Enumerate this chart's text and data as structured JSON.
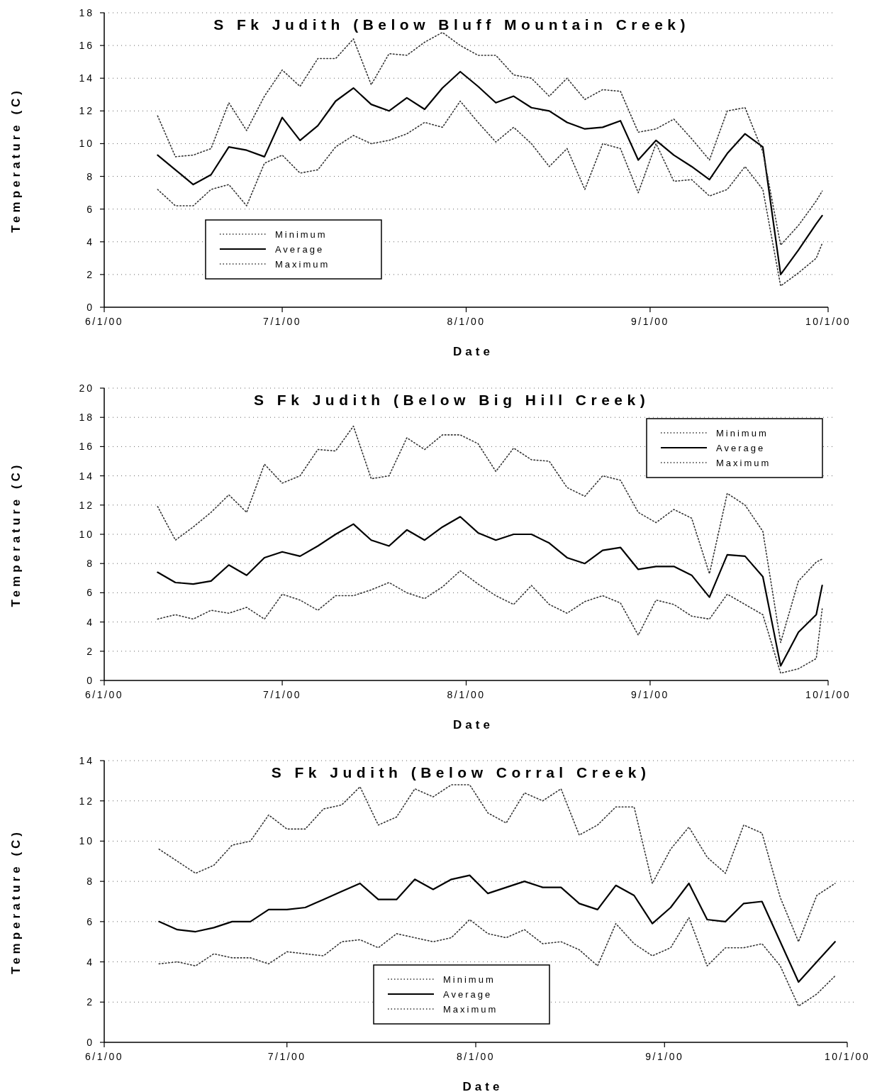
{
  "chart_data": [
    {
      "type": "line",
      "title": "S Fk Judith (Below Bluff Mountain Creek)",
      "xlabel": "Date",
      "ylabel": "Temperature (C)",
      "x": [
        "2000-06-10",
        "2000-06-13",
        "2000-06-16",
        "2000-06-19",
        "2000-06-22",
        "2000-06-25",
        "2000-06-28",
        "2000-07-01",
        "2000-07-04",
        "2000-07-07",
        "2000-07-10",
        "2000-07-13",
        "2000-07-16",
        "2000-07-19",
        "2000-07-22",
        "2000-07-25",
        "2000-07-28",
        "2000-07-31",
        "2000-08-03",
        "2000-08-06",
        "2000-08-09",
        "2000-08-12",
        "2000-08-15",
        "2000-08-18",
        "2000-08-21",
        "2000-08-24",
        "2000-08-27",
        "2000-08-30",
        "2000-09-02",
        "2000-09-05",
        "2000-09-08",
        "2000-09-11",
        "2000-09-14",
        "2000-09-17",
        "2000-09-20",
        "2000-09-23",
        "2000-09-26",
        "2000-09-29",
        "2000-09-30"
      ],
      "series": [
        {
          "name": "Minimum",
          "color": "#333333",
          "line_style": "dotted",
          "values": [
            7.2,
            6.2,
            6.2,
            7.2,
            7.5,
            6.2,
            8.8,
            9.3,
            8.2,
            8.4,
            9.8,
            10.5,
            10.0,
            10.2,
            10.6,
            11.3,
            11.0,
            12.6,
            11.3,
            10.1,
            11.0,
            10.0,
            8.6,
            9.7,
            7.2,
            10.0,
            9.7,
            7.0,
            10.0,
            7.7,
            7.8,
            6.8,
            7.2,
            8.6,
            7.2,
            1.3,
            2.1,
            3.0,
            3.9
          ]
        },
        {
          "name": "Average",
          "color": "#000000",
          "line_style": "solid",
          "values": [
            9.3,
            8.4,
            7.5,
            8.1,
            9.8,
            9.6,
            9.2,
            11.6,
            10.2,
            11.1,
            12.6,
            13.4,
            12.4,
            12.0,
            12.8,
            12.1,
            13.4,
            14.4,
            13.5,
            12.5,
            12.9,
            12.2,
            12.0,
            11.3,
            10.9,
            11.0,
            11.4,
            9.0,
            10.2,
            9.3,
            8.6,
            7.8,
            9.4,
            10.6,
            9.8,
            2.0,
            3.5,
            5.1,
            5.6
          ]
        },
        {
          "name": "Maximum",
          "color": "#333333",
          "line_style": "dotted",
          "values": [
            11.7,
            9.2,
            9.3,
            9.7,
            12.5,
            10.8,
            12.9,
            14.5,
            13.5,
            15.2,
            15.2,
            16.4,
            13.6,
            15.5,
            15.4,
            16.2,
            16.8,
            16.0,
            15.4,
            15.4,
            14.2,
            14.0,
            12.9,
            14.0,
            12.7,
            13.3,
            13.2,
            10.7,
            10.9,
            11.5,
            10.3,
            9.0,
            12.0,
            12.2,
            9.5,
            3.8,
            5.0,
            6.5,
            7.1
          ]
        }
      ],
      "xlim": [
        "2000-06-01",
        "2000-10-01"
      ],
      "xticks": [
        {
          "value": "2000-06-01",
          "label": "6/1/00"
        },
        {
          "value": "2000-07-01",
          "label": "7/1/00"
        },
        {
          "value": "2000-08-01",
          "label": "8/1/00"
        },
        {
          "value": "2000-09-01",
          "label": "9/1/00"
        },
        {
          "value": "2000-10-01",
          "label": "10/1/00"
        }
      ],
      "ylim": [
        0,
        18
      ],
      "yticks": [
        0,
        2,
        4,
        6,
        8,
        10,
        12,
        14,
        16,
        18
      ],
      "grid": "y",
      "legend": "bottom left"
    },
    {
      "type": "line",
      "title": "S Fk Judith (Below Big Hill Creek)",
      "xlabel": "Date",
      "ylabel": "Temperature (C)",
      "x": [
        "2000-06-10",
        "2000-06-13",
        "2000-06-16",
        "2000-06-19",
        "2000-06-22",
        "2000-06-25",
        "2000-06-28",
        "2000-07-01",
        "2000-07-04",
        "2000-07-07",
        "2000-07-10",
        "2000-07-13",
        "2000-07-16",
        "2000-07-19",
        "2000-07-22",
        "2000-07-25",
        "2000-07-28",
        "2000-07-31",
        "2000-08-03",
        "2000-08-06",
        "2000-08-09",
        "2000-08-12",
        "2000-08-15",
        "2000-08-18",
        "2000-08-21",
        "2000-08-24",
        "2000-08-27",
        "2000-08-30",
        "2000-09-02",
        "2000-09-05",
        "2000-09-08",
        "2000-09-11",
        "2000-09-14",
        "2000-09-17",
        "2000-09-20",
        "2000-09-23",
        "2000-09-26",
        "2000-09-29",
        "2000-09-30"
      ],
      "series": [
        {
          "name": "Minimum",
          "color": "#333333",
          "line_style": "dotted",
          "values": [
            4.2,
            4.5,
            4.2,
            4.8,
            4.6,
            5.0,
            4.2,
            5.9,
            5.5,
            4.8,
            5.8,
            5.8,
            6.2,
            6.7,
            6.0,
            5.6,
            6.4,
            7.5,
            6.6,
            5.8,
            5.2,
            6.5,
            5.2,
            4.6,
            5.4,
            5.8,
            5.3,
            3.1,
            5.5,
            5.2,
            4.4,
            4.2,
            5.9,
            5.2,
            4.5,
            0.5,
            0.8,
            1.5,
            4.9
          ]
        },
        {
          "name": "Average",
          "color": "#000000",
          "line_style": "solid",
          "values": [
            7.4,
            6.7,
            6.6,
            6.8,
            7.9,
            7.2,
            8.4,
            8.8,
            8.5,
            9.2,
            10.0,
            10.7,
            9.6,
            9.2,
            10.3,
            9.6,
            10.5,
            11.2,
            10.1,
            9.6,
            10.0,
            10.0,
            9.4,
            8.4,
            8.0,
            8.9,
            9.1,
            7.6,
            7.8,
            7.8,
            7.2,
            5.7,
            8.6,
            8.5,
            7.1,
            1.0,
            3.3,
            4.5,
            6.5
          ]
        },
        {
          "name": "Maximum",
          "color": "#333333",
          "line_style": "dotted",
          "values": [
            11.9,
            9.6,
            10.5,
            11.5,
            12.7,
            11.5,
            14.8,
            13.5,
            14.0,
            15.8,
            15.7,
            17.4,
            13.8,
            14.0,
            16.6,
            15.8,
            16.8,
            16.8,
            16.2,
            14.3,
            15.9,
            15.1,
            15.0,
            13.2,
            12.6,
            14.0,
            13.7,
            11.5,
            10.8,
            11.7,
            11.1,
            7.3,
            12.8,
            12.0,
            10.2,
            2.6,
            6.8,
            8.1,
            8.3
          ]
        }
      ],
      "xlim": [
        "2000-06-01",
        "2000-10-01"
      ],
      "xticks": [
        {
          "value": "2000-06-01",
          "label": "6/1/00"
        },
        {
          "value": "2000-07-01",
          "label": "7/1/00"
        },
        {
          "value": "2000-08-01",
          "label": "8/1/00"
        },
        {
          "value": "2000-09-01",
          "label": "9/1/00"
        },
        {
          "value": "2000-10-01",
          "label": "10/1/00"
        }
      ],
      "ylim": [
        0,
        20
      ],
      "yticks": [
        0,
        2,
        4,
        6,
        8,
        10,
        12,
        14,
        16,
        18,
        20
      ],
      "grid": "y",
      "legend": "top right"
    },
    {
      "type": "line",
      "title": "S Fk Judith (Below Corral Creek)",
      "xlabel": "Date",
      "ylabel": "Temperature (C)",
      "x": [
        "2000-06-10",
        "2000-06-13",
        "2000-06-16",
        "2000-06-19",
        "2000-06-22",
        "2000-06-25",
        "2000-06-28",
        "2000-07-01",
        "2000-07-04",
        "2000-07-07",
        "2000-07-10",
        "2000-07-13",
        "2000-07-16",
        "2000-07-19",
        "2000-07-22",
        "2000-07-25",
        "2000-07-28",
        "2000-07-31",
        "2000-08-03",
        "2000-08-06",
        "2000-08-09",
        "2000-08-12",
        "2000-08-15",
        "2000-08-18",
        "2000-08-21",
        "2000-08-24",
        "2000-08-27",
        "2000-08-30",
        "2000-09-02",
        "2000-09-05",
        "2000-09-08",
        "2000-09-11",
        "2000-09-14",
        "2000-09-17",
        "2000-09-20",
        "2000-09-23",
        "2000-09-26",
        "2000-09-29"
      ],
      "series": [
        {
          "name": "Minimum",
          "color": "#333333",
          "line_style": "dotted",
          "values": [
            3.9,
            4.0,
            3.8,
            4.4,
            4.2,
            4.2,
            3.9,
            4.5,
            4.4,
            4.3,
            5.0,
            5.1,
            4.7,
            5.4,
            5.2,
            5.0,
            5.2,
            6.1,
            5.4,
            5.2,
            5.6,
            4.9,
            5.0,
            4.6,
            3.8,
            5.9,
            4.9,
            4.3,
            4.7,
            6.2,
            3.8,
            4.7,
            4.7,
            4.9,
            3.8,
            1.8,
            2.4,
            3.3
          ]
        },
        {
          "name": "Average",
          "color": "#000000",
          "line_style": "solid",
          "values": [
            6.0,
            5.6,
            5.5,
            5.7,
            6.0,
            6.0,
            6.6,
            6.6,
            6.7,
            7.1,
            7.5,
            7.9,
            7.1,
            7.1,
            8.1,
            7.6,
            8.1,
            8.3,
            7.4,
            7.7,
            8.0,
            7.7,
            7.7,
            6.9,
            6.6,
            7.8,
            7.3,
            5.9,
            6.7,
            7.9,
            6.1,
            6.0,
            6.9,
            7.0,
            5.0,
            3.0,
            4.0,
            5.0
          ]
        },
        {
          "name": "Maximum",
          "color": "#333333",
          "line_style": "dotted",
          "values": [
            9.6,
            9.0,
            8.4,
            8.8,
            9.8,
            10.0,
            11.3,
            10.6,
            10.6,
            11.6,
            11.8,
            12.7,
            10.8,
            11.2,
            12.6,
            12.2,
            12.8,
            12.8,
            11.4,
            10.9,
            12.4,
            12.0,
            12.6,
            10.3,
            10.8,
            11.7,
            11.7,
            7.9,
            9.6,
            10.7,
            9.2,
            8.4,
            10.8,
            10.4,
            7.2,
            5.0,
            7.3,
            7.9
          ]
        }
      ],
      "xlim": [
        "2000-06-01",
        "2000-10-01"
      ],
      "xticks": [
        {
          "value": "2000-06-01",
          "label": "6/1/00"
        },
        {
          "value": "2000-07-01",
          "label": "7/1/00"
        },
        {
          "value": "2000-08-01",
          "label": "8/1/00"
        },
        {
          "value": "2000-09-01",
          "label": "9/1/00"
        },
        {
          "value": "2000-10-01",
          "label": "10/1/00"
        }
      ],
      "ylim": [
        0,
        14
      ],
      "yticks": [
        0,
        2,
        4,
        6,
        8,
        10,
        12,
        14
      ],
      "grid": "y",
      "legend": "bottom"
    }
  ]
}
